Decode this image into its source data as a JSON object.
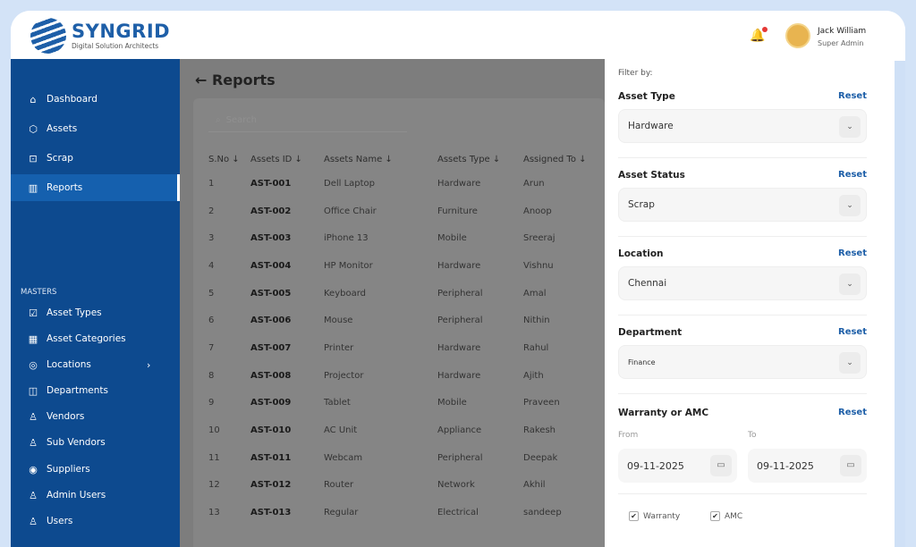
{
  "brand": {
    "name": "SYNGRID",
    "tagline": "Digital Solution Architects"
  },
  "user": {
    "name": "Jack William",
    "role": "Super Admin"
  },
  "sidebar": {
    "items": [
      {
        "label": "Dashboard",
        "icon": "home-icon"
      },
      {
        "label": "Assets",
        "icon": "box-icon"
      },
      {
        "label": "Scrap",
        "icon": "scrap-icon"
      },
      {
        "label": "Reports",
        "icon": "chart-icon",
        "active": true
      }
    ],
    "masters_heading": "MASTERS",
    "masters": [
      {
        "label": "Asset Types"
      },
      {
        "label": "Asset Categories"
      },
      {
        "label": "Locations",
        "has_submenu": true
      },
      {
        "label": "Departments"
      },
      {
        "label": "Vendors"
      },
      {
        "label": "Sub Vendors"
      },
      {
        "label": "Suppliers"
      },
      {
        "label": "Admin Users"
      },
      {
        "label": "Users"
      }
    ]
  },
  "main": {
    "title": "Reports",
    "search_placeholder": "Search",
    "columns": [
      "S.No ↓",
      "Assets ID ↓",
      "Assets Name ↓",
      "Assets Type ↓",
      "Assigned To ↓"
    ],
    "rows": [
      [
        "1",
        "AST-001",
        "Dell Laptop",
        "Hardware",
        "Arun"
      ],
      [
        "2",
        "AST-002",
        "Office Chair",
        "Furniture",
        "Anoop"
      ],
      [
        "3",
        "AST-003",
        "iPhone 13",
        "Mobile",
        "Sreeraj"
      ],
      [
        "4",
        "AST-004",
        "HP Monitor",
        "Hardware",
        "Vishnu"
      ],
      [
        "5",
        "AST-005",
        "Keyboard",
        "Peripheral",
        "Amal"
      ],
      [
        "6",
        "AST-006",
        "Mouse",
        "Peripheral",
        "Nithin"
      ],
      [
        "7",
        "AST-007",
        "Printer",
        "Hardware",
        "Rahul"
      ],
      [
        "8",
        "AST-008",
        "Projector",
        "Hardware",
        "Ajith"
      ],
      [
        "9",
        "AST-009",
        "Tablet",
        "Mobile",
        "Praveen"
      ],
      [
        "10",
        "AST-010",
        "AC Unit",
        "Appliance",
        "Rakesh"
      ],
      [
        "11",
        "AST-011",
        "Webcam",
        "Peripheral",
        "Deepak"
      ],
      [
        "12",
        "AST-012",
        "Router",
        "Network",
        "Akhil"
      ],
      [
        "13",
        "AST-013",
        "Regular",
        "Electrical",
        "sandeep"
      ]
    ]
  },
  "filter": {
    "heading": "Filter by:",
    "reset_label": "Reset",
    "sections": [
      {
        "label": "Asset Type",
        "value": "Hardware"
      },
      {
        "label": "Asset Status",
        "value": "Scrap"
      },
      {
        "label": "Location",
        "value": "Chennai"
      },
      {
        "label": "Department",
        "value": "Finance"
      }
    ],
    "warranty": {
      "label": "Warranty or AMC",
      "from_label": "From",
      "to_label": "To",
      "from": "09-11-2025",
      "to": "09-11-2025",
      "checks": [
        {
          "label": "Warranty",
          "checked": true
        },
        {
          "label": "AMC",
          "checked": true
        }
      ]
    }
  },
  "colors": {
    "sidebar": "#0d4a8f",
    "accent": "#1e5fa8",
    "overlay": "#7d7d7d"
  }
}
